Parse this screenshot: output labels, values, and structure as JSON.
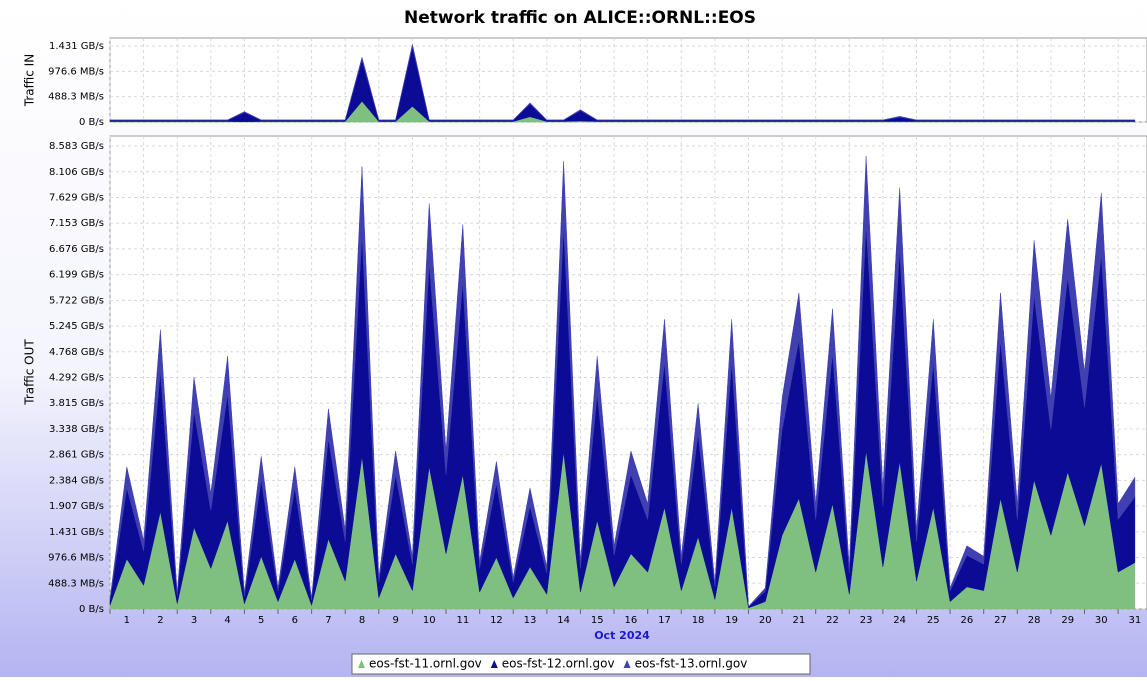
{
  "chart_data": [
    {
      "type": "area",
      "title": "Network traffic on ALICE::ORNL::EOS",
      "ylabel": "Traffic IN",
      "x": [
        1,
        1.5,
        2,
        2.5,
        3,
        3.5,
        4,
        4.5,
        5,
        5.5,
        6,
        6.5,
        7,
        7.5,
        8,
        8.5,
        9,
        9.5,
        10,
        10.5,
        11,
        11.5,
        12,
        12.5,
        13,
        13.5,
        14,
        14.5,
        15,
        15.5,
        16,
        16.5,
        17,
        17.5,
        18,
        18.5,
        19,
        19.5,
        20,
        20.5,
        21,
        21.5,
        22,
        22.5,
        23,
        23.5,
        24,
        24.5,
        25,
        25.5,
        26,
        26.5,
        27,
        27.5,
        28,
        28.5,
        29,
        29.5,
        30,
        30.5,
        31,
        31.5
      ],
      "xlim": [
        1,
        31.86
      ],
      "xticks": [
        1,
        2,
        3,
        4,
        5,
        6,
        7,
        8,
        9,
        10,
        11,
        12,
        13,
        14,
        15,
        16,
        17,
        18,
        19,
        20,
        21,
        22,
        23,
        24,
        25,
        26,
        27,
        28,
        29,
        30,
        31
      ],
      "ylim": [
        0,
        1620
      ],
      "yticks": [
        {
          "value": 0,
          "label": "0 B/s"
        },
        {
          "value": 488.3,
          "label": "488.3 MB/s"
        },
        {
          "value": 976.6,
          "label": "976.6 MB/s"
        },
        {
          "value": 1465.4,
          "label": "1.431 GB/s"
        }
      ],
      "grid": true,
      "stacked": true,
      "series": [
        {
          "color": "#7fbf7f",
          "values": [
            10,
            10,
            10,
            10,
            10,
            10,
            10,
            10,
            5,
            10,
            10,
            10,
            10,
            10,
            10,
            400,
            10,
            10,
            300,
            10,
            10,
            10,
            10,
            10,
            10,
            100,
            10,
            10,
            20,
            10,
            10,
            10,
            10,
            10,
            10,
            10,
            10,
            10,
            10,
            10,
            10,
            10,
            10,
            10,
            10,
            10,
            10,
            10,
            10,
            10,
            10,
            10,
            10,
            10,
            10,
            10,
            10,
            10,
            10,
            10,
            10,
            10
          ]
        },
        {
          "color": "#0b0b96",
          "values": [
            25,
            25,
            25,
            25,
            25,
            25,
            25,
            25,
            180,
            25,
            25,
            25,
            25,
            25,
            25,
            800,
            25,
            25,
            1150,
            25,
            25,
            25,
            25,
            25,
            25,
            250,
            25,
            25,
            200,
            25,
            25,
            25,
            25,
            25,
            25,
            25,
            25,
            25,
            25,
            25,
            25,
            25,
            25,
            25,
            25,
            25,
            25,
            80,
            25,
            25,
            25,
            25,
            25,
            25,
            25,
            25,
            25,
            25,
            25,
            25,
            25,
            25
          ]
        },
        {
          "color": "#4040b0",
          "values": [
            5,
            5,
            5,
            5,
            5,
            5,
            5,
            5,
            15,
            5,
            5,
            5,
            5,
            5,
            5,
            50,
            5,
            5,
            50,
            5,
            5,
            5,
            5,
            5,
            5,
            20,
            5,
            5,
            20,
            5,
            5,
            5,
            5,
            5,
            5,
            5,
            5,
            5,
            5,
            5,
            5,
            5,
            5,
            5,
            5,
            5,
            5,
            20,
            5,
            5,
            5,
            5,
            5,
            5,
            5,
            5,
            5,
            5,
            5,
            5,
            5,
            5
          ]
        }
      ]
    },
    {
      "type": "area",
      "ylabel": "Traffic OUT",
      "xlabel": "Oct 2024",
      "x": [
        1,
        1.5,
        2,
        2.5,
        3,
        3.5,
        4,
        4.5,
        5,
        5.5,
        6,
        6.5,
        7,
        7.5,
        8,
        8.5,
        9,
        9.5,
        10,
        10.5,
        11,
        11.5,
        12,
        12.5,
        13,
        13.5,
        14,
        14.5,
        15,
        15.5,
        16,
        16.5,
        17,
        17.5,
        18,
        18.5,
        19,
        19.5,
        20,
        20.5,
        21,
        21.5,
        22,
        22.5,
        23,
        23.5,
        24,
        24.5,
        25,
        25.5,
        26,
        26.5,
        27,
        27.5,
        28,
        28.5,
        29,
        29.5,
        30,
        30.5,
        31,
        31.5
      ],
      "xlim": [
        1,
        31.86
      ],
      "xticks": [
        {
          "value": 1,
          "label": "1"
        },
        {
          "value": 2,
          "label": "2"
        },
        {
          "value": 3,
          "label": "3"
        },
        {
          "value": 4,
          "label": "4"
        },
        {
          "value": 5,
          "label": "5"
        },
        {
          "value": 6,
          "label": "6"
        },
        {
          "value": 7,
          "label": "7"
        },
        {
          "value": 8,
          "label": "8"
        },
        {
          "value": 9,
          "label": "9"
        },
        {
          "value": 10,
          "label": "10"
        },
        {
          "value": 11,
          "label": "11"
        },
        {
          "value": 12,
          "label": "12"
        },
        {
          "value": 13,
          "label": "13"
        },
        {
          "value": 14,
          "label": "14"
        },
        {
          "value": 15,
          "label": "15"
        },
        {
          "value": 16,
          "label": "16"
        },
        {
          "value": 17,
          "label": "17"
        },
        {
          "value": 18,
          "label": "18"
        },
        {
          "value": 19,
          "label": "19"
        },
        {
          "value": 20,
          "label": "20"
        },
        {
          "value": 21,
          "label": "21"
        },
        {
          "value": 22,
          "label": "22"
        },
        {
          "value": 23,
          "label": "23"
        },
        {
          "value": 24,
          "label": "24"
        },
        {
          "value": 25,
          "label": "25"
        },
        {
          "value": 26,
          "label": "26"
        },
        {
          "value": 27,
          "label": "27"
        },
        {
          "value": 28,
          "label": "28"
        },
        {
          "value": 29,
          "label": "29"
        },
        {
          "value": 30,
          "label": "30"
        },
        {
          "value": 31,
          "label": "31"
        }
      ],
      "ylim": [
        0,
        8980
      ],
      "yticks": [
        {
          "value": 0,
          "label": "0 B/s"
        },
        {
          "value": 488.3,
          "label": "488.3 MB/s"
        },
        {
          "value": 976.6,
          "label": "976.6 MB/s"
        },
        {
          "value": 1465.4,
          "label": "1.431 GB/s"
        },
        {
          "value": 1953.1,
          "label": "1.907 GB/s"
        },
        {
          "value": 2441.4,
          "label": "2.384 GB/s"
        },
        {
          "value": 2929.7,
          "label": "2.861 GB/s"
        },
        {
          "value": 3418.0,
          "label": "3.338 GB/s"
        },
        {
          "value": 3906.3,
          "label": "3.815 GB/s"
        },
        {
          "value": 4394.5,
          "label": "4.292 GB/s"
        },
        {
          "value": 4882.8,
          "label": "4.768 GB/s"
        },
        {
          "value": 5371.1,
          "label": "5.245 GB/s"
        },
        {
          "value": 5859.4,
          "label": "5.722 GB/s"
        },
        {
          "value": 6347.7,
          "label": "6.199 GB/s"
        },
        {
          "value": 6835.9,
          "label": "6.676 GB/s"
        },
        {
          "value": 7324.2,
          "label": "7.153 GB/s"
        },
        {
          "value": 7812.5,
          "label": "7.629 GB/s"
        },
        {
          "value": 8300.8,
          "label": "8.106 GB/s"
        },
        {
          "value": 8789.1,
          "label": "8.583 GB/s"
        }
      ],
      "grid": true,
      "stacked": true,
      "series": [
        {
          "name": "eos-fst-11.ornl.gov",
          "color": "#7fbf7f",
          "values": [
            70,
            950,
            450,
            1850,
            100,
            1550,
            770,
            1680,
            100,
            1000,
            140,
            950,
            70,
            1330,
            530,
            2900,
            210,
            1050,
            350,
            2700,
            1050,
            2550,
            320,
            980,
            210,
            800,
            280,
            2980,
            320,
            1680,
            420,
            1050,
            700,
            1930,
            350,
            1370,
            180,
            1930,
            20,
            140,
            1400,
            2100,
            700,
            2000,
            280,
            3000,
            800,
            2800,
            530,
            1930,
            140,
            420,
            350,
            2100,
            700,
            2450,
            1400,
            2600,
            1580,
            2770,
            700,
            880
          ]
        },
        {
          "name": "eos-fst-12.ornl.gov",
          "color": "#0b0b96",
          "values": [
            100,
            1350,
            650,
            2650,
            150,
            2200,
            1100,
            2400,
            150,
            1450,
            200,
            1350,
            100,
            1900,
            750,
            4200,
            300,
            1500,
            500,
            3850,
            1500,
            3650,
            450,
            1400,
            300,
            1150,
            400,
            4250,
            450,
            2400,
            600,
            1500,
            1000,
            2750,
            500,
            1950,
            250,
            2750,
            20,
            200,
            2000,
            3000,
            1000,
            2850,
            400,
            4300,
            1150,
            4000,
            750,
            2750,
            200,
            600,
            500,
            3000,
            1000,
            3500,
            2000,
            3700,
            2250,
            3950,
            1000,
            1250
          ]
        },
        {
          "name": "eos-fst-13.ornl.gov",
          "color": "#4040b0",
          "values": [
            30,
            400,
            200,
            800,
            50,
            650,
            330,
            720,
            50,
            450,
            60,
            400,
            30,
            570,
            220,
            1300,
            90,
            450,
            150,
            1150,
            450,
            1100,
            130,
            420,
            90,
            350,
            120,
            1270,
            130,
            720,
            180,
            450,
            300,
            820,
            150,
            580,
            70,
            820,
            10,
            60,
            600,
            900,
            300,
            850,
            120,
            1300,
            350,
            1200,
            220,
            820,
            60,
            180,
            150,
            900,
            300,
            1050,
            600,
            1100,
            670,
            1180,
            300,
            370
          ]
        }
      ]
    }
  ]
}
